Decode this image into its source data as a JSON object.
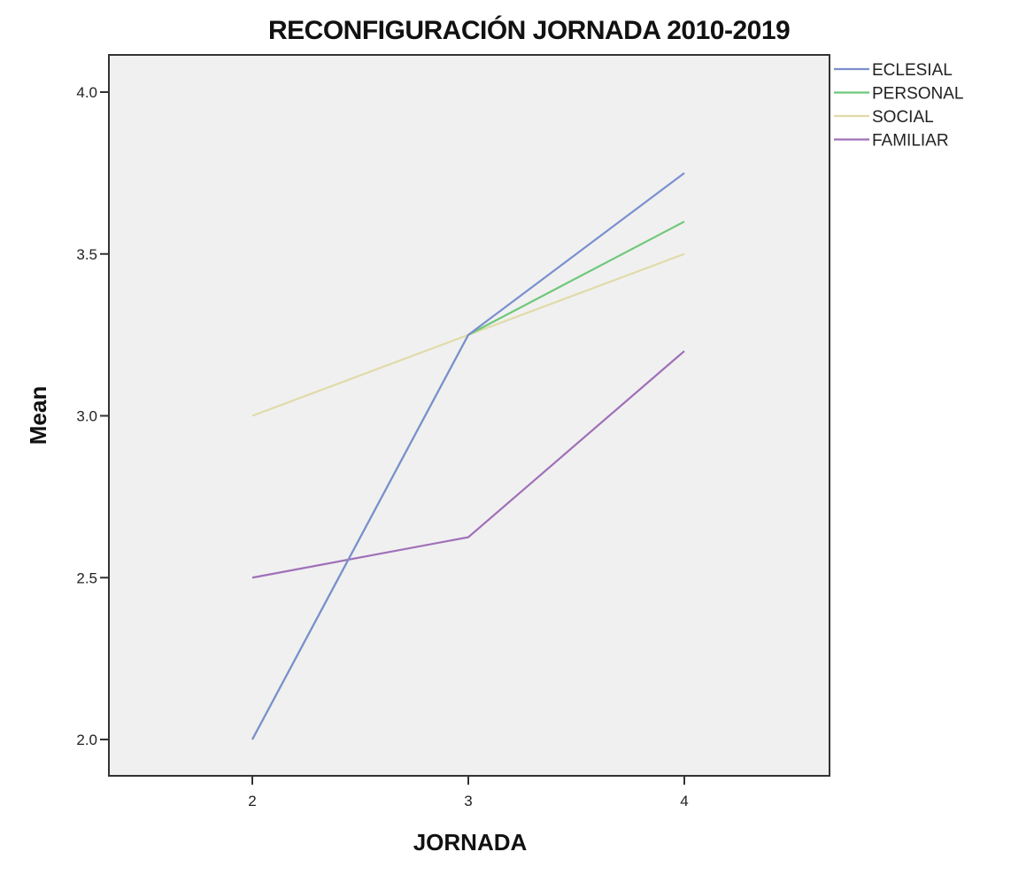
{
  "chart_data": {
    "type": "line",
    "title": "RECONFIGURACIÓN JORNADA 2010-2019",
    "xlabel": "JORNADA",
    "ylabel": "Mean",
    "categories": [
      "2",
      "3",
      "4"
    ],
    "x": [
      2,
      3,
      4
    ],
    "xlim": [
      1.33,
      4.67
    ],
    "ylim": [
      1.89,
      4.11
    ],
    "yticks": [
      "2.0",
      "2.5",
      "3.0",
      "3.5",
      "4.0"
    ],
    "grid": false,
    "legend_position": "right-top-outside",
    "series": [
      {
        "name": "ECLESIAL",
        "color": "#7b8fd0",
        "values": [
          2.0,
          3.25,
          3.75
        ]
      },
      {
        "name": "PERSONAL",
        "color": "#6fc87a",
        "values": [
          2.0,
          3.25,
          3.6
        ]
      },
      {
        "name": "SOCIAL",
        "color": "#e0dba8",
        "values": [
          3.0,
          3.25,
          3.5
        ]
      },
      {
        "name": "FAMILIAR",
        "color": "#a070b8",
        "values": [
          2.5,
          2.625,
          3.2
        ]
      }
    ]
  }
}
